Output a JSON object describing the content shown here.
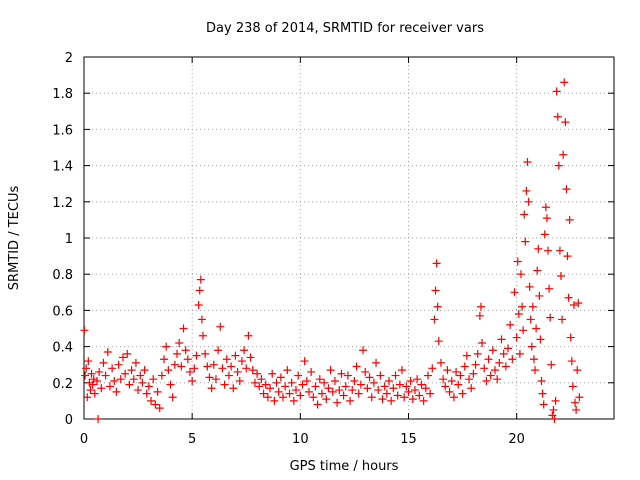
{
  "chart_data": {
    "type": "scatter",
    "title": "Day 238 of 2014, SRMTID for receiver vars",
    "xlabel": "GPS time / hours",
    "ylabel": "SRMTID / TECUs",
    "xlim": [
      0,
      24.5
    ],
    "ylim": [
      0,
      2
    ],
    "xticks": [
      0,
      5,
      10,
      15,
      20
    ],
    "xtick_labels": [
      "0",
      "5",
      "10",
      "15",
      "20"
    ],
    "yticks": [
      0,
      0.2,
      0.4,
      0.6,
      0.8,
      1,
      1.2,
      1.4,
      1.6,
      1.8,
      2
    ],
    "ytick_labels": [
      "0",
      "0.2",
      "0.4",
      "0.6",
      "0.8",
      "1",
      "1.2",
      "1.4",
      "1.6",
      "1.8",
      "2"
    ],
    "grid": true,
    "marker": "+",
    "color": "#ff0000",
    "series": [
      {
        "name": "SRMTID",
        "points": [
          [
            0.02,
            0.49
          ],
          [
            0.05,
            0.24
          ],
          [
            0.1,
            0.28
          ],
          [
            0.15,
            0.12
          ],
          [
            0.2,
            0.32
          ],
          [
            0.25,
            0.2
          ],
          [
            0.3,
            0.16
          ],
          [
            0.35,
            0.25
          ],
          [
            0.4,
            0.19
          ],
          [
            0.45,
            0.22
          ],
          [
            0.5,
            0.14
          ],
          [
            0.6,
            0.21
          ],
          [
            0.65,
            0.0
          ],
          [
            0.7,
            0.26
          ],
          [
            0.8,
            0.17
          ],
          [
            0.9,
            0.31
          ],
          [
            1.0,
            0.24
          ],
          [
            1.1,
            0.37
          ],
          [
            1.2,
            0.18
          ],
          [
            1.3,
            0.28
          ],
          [
            1.4,
            0.21
          ],
          [
            1.5,
            0.15
          ],
          [
            1.6,
            0.3
          ],
          [
            1.7,
            0.22
          ],
          [
            1.8,
            0.34
          ],
          [
            1.9,
            0.25
          ],
          [
            2.0,
            0.36
          ],
          [
            2.1,
            0.19
          ],
          [
            2.2,
            0.27
          ],
          [
            2.3,
            0.22
          ],
          [
            2.4,
            0.31
          ],
          [
            2.5,
            0.16
          ],
          [
            2.6,
            0.24
          ],
          [
            2.7,
            0.2
          ],
          [
            2.8,
            0.27
          ],
          [
            2.9,
            0.14
          ],
          [
            3.0,
            0.18
          ],
          [
            3.1,
            0.1
          ],
          [
            3.2,
            0.22
          ],
          [
            3.3,
            0.08
          ],
          [
            3.4,
            0.15
          ],
          [
            3.5,
            0.06
          ],
          [
            3.6,
            0.24
          ],
          [
            3.7,
            0.33
          ],
          [
            3.8,
            0.4
          ],
          [
            3.9,
            0.27
          ],
          [
            4.0,
            0.19
          ],
          [
            4.1,
            0.12
          ],
          [
            4.2,
            0.3
          ],
          [
            4.3,
            0.36
          ],
          [
            4.4,
            0.42
          ],
          [
            4.5,
            0.29
          ],
          [
            4.6,
            0.5
          ],
          [
            4.7,
            0.38
          ],
          [
            4.8,
            0.33
          ],
          [
            4.9,
            0.26
          ],
          [
            5.0,
            0.21
          ],
          [
            5.1,
            0.28
          ],
          [
            5.2,
            0.35
          ],
          [
            5.3,
            0.63
          ],
          [
            5.35,
            0.71
          ],
          [
            5.4,
            0.77
          ],
          [
            5.45,
            0.55
          ],
          [
            5.5,
            0.46
          ],
          [
            5.6,
            0.36
          ],
          [
            5.7,
            0.29
          ],
          [
            5.8,
            0.23
          ],
          [
            5.9,
            0.17
          ],
          [
            6.0,
            0.3
          ],
          [
            6.1,
            0.22
          ],
          [
            6.2,
            0.38
          ],
          [
            6.3,
            0.51
          ],
          [
            6.4,
            0.28
          ],
          [
            6.5,
            0.19
          ],
          [
            6.6,
            0.33
          ],
          [
            6.7,
            0.24
          ],
          [
            6.8,
            0.29
          ],
          [
            6.9,
            0.17
          ],
          [
            7.0,
            0.35
          ],
          [
            7.1,
            0.26
          ],
          [
            7.2,
            0.21
          ],
          [
            7.3,
            0.32
          ],
          [
            7.4,
            0.38
          ],
          [
            7.5,
            0.28
          ],
          [
            7.6,
            0.46
          ],
          [
            7.7,
            0.34
          ],
          [
            7.8,
            0.27
          ],
          [
            7.9,
            0.2
          ],
          [
            8.0,
            0.25
          ],
          [
            8.1,
            0.18
          ],
          [
            8.2,
            0.22
          ],
          [
            8.3,
            0.14
          ],
          [
            8.4,
            0.19
          ],
          [
            8.5,
            0.12
          ],
          [
            8.6,
            0.17
          ],
          [
            8.7,
            0.25
          ],
          [
            8.8,
            0.1
          ],
          [
            8.9,
            0.2
          ],
          [
            9.0,
            0.15
          ],
          [
            9.1,
            0.23
          ],
          [
            9.2,
            0.12
          ],
          [
            9.3,
            0.18
          ],
          [
            9.4,
            0.27
          ],
          [
            9.5,
            0.14
          ],
          [
            9.6,
            0.2
          ],
          [
            9.7,
            0.1
          ],
          [
            9.8,
            0.16
          ],
          [
            9.9,
            0.24
          ],
          [
            10.0,
            0.13
          ],
          [
            10.1,
            0.19
          ],
          [
            10.2,
            0.32
          ],
          [
            10.3,
            0.21
          ],
          [
            10.4,
            0.15
          ],
          [
            10.5,
            0.26
          ],
          [
            10.6,
            0.12
          ],
          [
            10.7,
            0.18
          ],
          [
            10.8,
            0.08
          ],
          [
            10.9,
            0.22
          ],
          [
            11.0,
            0.14
          ],
          [
            11.1,
            0.2
          ],
          [
            11.2,
            0.11
          ],
          [
            11.3,
            0.17
          ],
          [
            11.4,
            0.27
          ],
          [
            11.5,
            0.15
          ],
          [
            11.6,
            0.21
          ],
          [
            11.7,
            0.09
          ],
          [
            11.8,
            0.16
          ],
          [
            11.9,
            0.25
          ],
          [
            12.0,
            0.13
          ],
          [
            12.1,
            0.18
          ],
          [
            12.2,
            0.24
          ],
          [
            12.3,
            0.1
          ],
          [
            12.4,
            0.16
          ],
          [
            12.5,
            0.21
          ],
          [
            12.6,
            0.29
          ],
          [
            12.7,
            0.14
          ],
          [
            12.8,
            0.19
          ],
          [
            12.9,
            0.38
          ],
          [
            13.0,
            0.26
          ],
          [
            13.1,
            0.17
          ],
          [
            13.2,
            0.23
          ],
          [
            13.3,
            0.12
          ],
          [
            13.4,
            0.2
          ],
          [
            13.5,
            0.31
          ],
          [
            13.6,
            0.16
          ],
          [
            13.7,
            0.24
          ],
          [
            13.8,
            0.11
          ],
          [
            13.9,
            0.18
          ],
          [
            14.0,
            0.14
          ],
          [
            14.1,
            0.21
          ],
          [
            14.2,
            0.1
          ],
          [
            14.3,
            0.17
          ],
          [
            14.4,
            0.24
          ],
          [
            14.5,
            0.13
          ],
          [
            14.6,
            0.19
          ],
          [
            14.7,
            0.27
          ],
          [
            14.8,
            0.12
          ],
          [
            14.9,
            0.18
          ],
          [
            15.0,
            0.15
          ],
          [
            15.1,
            0.21
          ],
          [
            15.2,
            0.11
          ],
          [
            15.3,
            0.16
          ],
          [
            15.4,
            0.22
          ],
          [
            15.5,
            0.13
          ],
          [
            15.6,
            0.19
          ],
          [
            15.7,
            0.1
          ],
          [
            15.8,
            0.17
          ],
          [
            15.9,
            0.24
          ],
          [
            16.0,
            0.14
          ],
          [
            16.1,
            0.28
          ],
          [
            16.2,
            0.55
          ],
          [
            16.25,
            0.71
          ],
          [
            16.3,
            0.86
          ],
          [
            16.35,
            0.62
          ],
          [
            16.4,
            0.43
          ],
          [
            16.5,
            0.31
          ],
          [
            16.6,
            0.22
          ],
          [
            16.7,
            0.18
          ],
          [
            16.8,
            0.27
          ],
          [
            16.9,
            0.15
          ],
          [
            17.0,
            0.21
          ],
          [
            17.1,
            0.12
          ],
          [
            17.2,
            0.26
          ],
          [
            17.3,
            0.19
          ],
          [
            17.4,
            0.24
          ],
          [
            17.5,
            0.14
          ],
          [
            17.6,
            0.29
          ],
          [
            17.7,
            0.35
          ],
          [
            17.8,
            0.22
          ],
          [
            17.9,
            0.17
          ],
          [
            18.0,
            0.25
          ],
          [
            18.1,
            0.3
          ],
          [
            18.2,
            0.36
          ],
          [
            18.3,
            0.57
          ],
          [
            18.35,
            0.62
          ],
          [
            18.4,
            0.42
          ],
          [
            18.5,
            0.28
          ],
          [
            18.6,
            0.21
          ],
          [
            18.7,
            0.33
          ],
          [
            18.8,
            0.24
          ],
          [
            18.9,
            0.38
          ],
          [
            19.0,
            0.27
          ],
          [
            19.1,
            0.22
          ],
          [
            19.2,
            0.31
          ],
          [
            19.3,
            0.44
          ],
          [
            19.4,
            0.36
          ],
          [
            19.5,
            0.29
          ],
          [
            19.6,
            0.39
          ],
          [
            19.7,
            0.52
          ],
          [
            19.8,
            0.33
          ],
          [
            19.9,
            0.7
          ],
          [
            20.0,
            0.45
          ],
          [
            20.05,
            0.87
          ],
          [
            20.1,
            0.58
          ],
          [
            20.15,
            0.36
          ],
          [
            20.2,
            0.8
          ],
          [
            20.25,
            0.62
          ],
          [
            20.3,
            0.49
          ],
          [
            20.35,
            1.13
          ],
          [
            20.4,
            0.98
          ],
          [
            20.45,
            1.26
          ],
          [
            20.5,
            1.42
          ],
          [
            20.55,
            1.2
          ],
          [
            20.6,
            0.73
          ],
          [
            20.65,
            0.55
          ],
          [
            20.7,
            0.4
          ],
          [
            20.75,
            0.62
          ],
          [
            20.8,
            0.33
          ],
          [
            20.85,
            0.27
          ],
          [
            20.9,
            0.5
          ],
          [
            20.95,
            0.82
          ],
          [
            21.0,
            0.94
          ],
          [
            21.05,
            0.68
          ],
          [
            21.1,
            0.44
          ],
          [
            21.15,
            0.21
          ],
          [
            21.2,
            0.14
          ],
          [
            21.25,
            0.08
          ],
          [
            21.3,
            1.02
          ],
          [
            21.35,
            1.17
          ],
          [
            21.4,
            1.11
          ],
          [
            21.45,
            0.93
          ],
          [
            21.5,
            0.72
          ],
          [
            21.55,
            0.56
          ],
          [
            21.6,
            0.3
          ],
          [
            21.65,
            0.02
          ],
          [
            21.7,
            0.05
          ],
          [
            21.75,
            0.0
          ],
          [
            21.8,
            0.1
          ],
          [
            21.85,
            1.81
          ],
          [
            21.9,
            1.67
          ],
          [
            21.95,
            1.4
          ],
          [
            22.0,
            0.93
          ],
          [
            22.05,
            0.79
          ],
          [
            22.1,
            0.55
          ],
          [
            22.15,
            1.46
          ],
          [
            22.2,
            1.86
          ],
          [
            22.25,
            1.64
          ],
          [
            22.3,
            1.27
          ],
          [
            22.35,
            0.9
          ],
          [
            22.4,
            0.67
          ],
          [
            22.45,
            1.1
          ],
          [
            22.5,
            0.45
          ],
          [
            22.55,
            0.32
          ],
          [
            22.6,
            0.18
          ],
          [
            22.65,
            0.63
          ],
          [
            22.7,
            0.09
          ],
          [
            22.75,
            0.05
          ],
          [
            22.8,
            0.27
          ],
          [
            22.85,
            0.64
          ],
          [
            22.9,
            0.12
          ]
        ]
      }
    ]
  }
}
